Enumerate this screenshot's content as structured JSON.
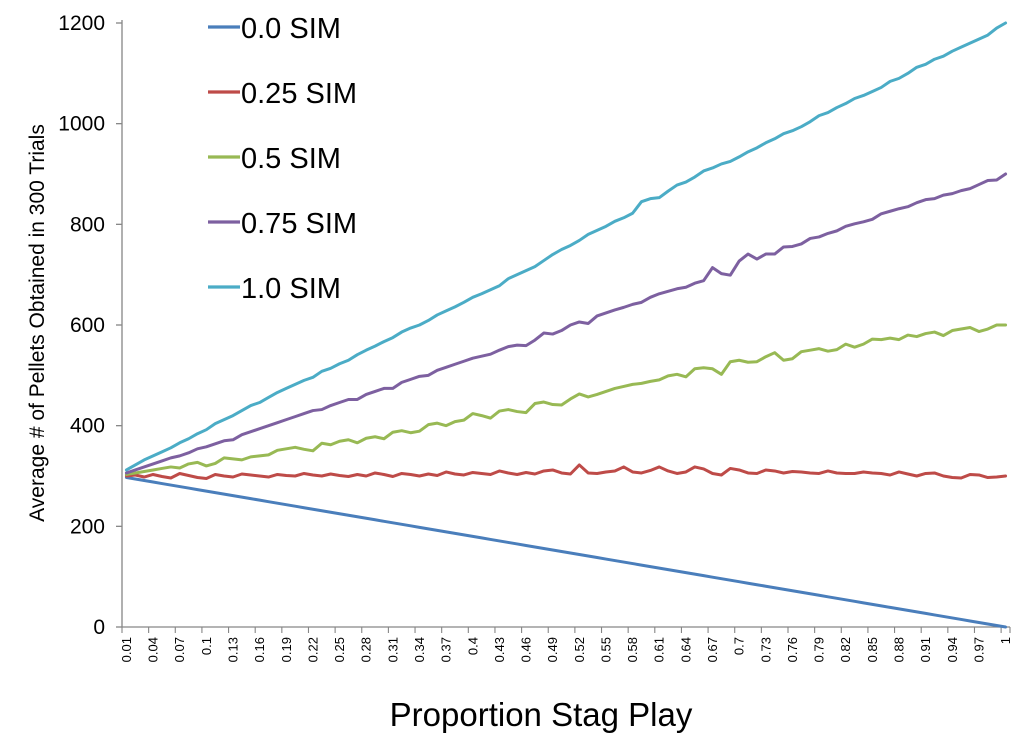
{
  "chart_data": {
    "type": "line",
    "xlabel": "Proportion Stag Play",
    "ylabel": "Average # of Pellets Obtained in 300 Trials",
    "ylim": [
      0,
      1200
    ],
    "yticks": [
      0,
      200,
      400,
      600,
      800,
      1000,
      1200
    ],
    "x": [
      0.01,
      0.02,
      0.03,
      0.04,
      0.05,
      0.06,
      0.07,
      0.08,
      0.09,
      0.1,
      0.11,
      0.12,
      0.13,
      0.14,
      0.15,
      0.16,
      0.17,
      0.18,
      0.19,
      0.2,
      0.21,
      0.22,
      0.23,
      0.24,
      0.25,
      0.26,
      0.27,
      0.28,
      0.29,
      0.3,
      0.31,
      0.32,
      0.33,
      0.34,
      0.35,
      0.36,
      0.37,
      0.38,
      0.39,
      0.4,
      0.41,
      0.42,
      0.43,
      0.44,
      0.45,
      0.46,
      0.47,
      0.48,
      0.49,
      0.5,
      0.51,
      0.52,
      0.53,
      0.54,
      0.55,
      0.56,
      0.57,
      0.58,
      0.59,
      0.6,
      0.61,
      0.62,
      0.63,
      0.64,
      0.65,
      0.66,
      0.67,
      0.68,
      0.69,
      0.7,
      0.71,
      0.72,
      0.73,
      0.74,
      0.75,
      0.76,
      0.77,
      0.78,
      0.79,
      0.8,
      0.81,
      0.82,
      0.83,
      0.84,
      0.85,
      0.86,
      0.87,
      0.88,
      0.89,
      0.9,
      0.91,
      0.92,
      0.93,
      0.94,
      0.95,
      0.96,
      0.97,
      0.98,
      0.99,
      1
    ],
    "xtick_labels": [
      "0.01",
      "0.04",
      "0.07",
      "0.1",
      "0.13",
      "0.16",
      "0.19",
      "0.22",
      "0.25",
      "0.28",
      "0.31",
      "0.34",
      "0.37",
      "0.4",
      "0.43",
      "0.46",
      "0.49",
      "0.52",
      "0.55",
      "0.58",
      "0.61",
      "0.64",
      "0.67",
      "0.7",
      "0.73",
      "0.76",
      "0.79",
      "0.82",
      "0.85",
      "0.88",
      "0.91",
      "0.94",
      "0.97",
      "1"
    ],
    "grid": false,
    "legend_position": "top-left",
    "series": [
      {
        "name": "0.0 SIM",
        "color": "#4a7ebb",
        "values": [
          297,
          294,
          291,
          288,
          285,
          282,
          279,
          276,
          273,
          270,
          267,
          264,
          261,
          258,
          255,
          252,
          249,
          246,
          243,
          240,
          237,
          234,
          231,
          228,
          225,
          222,
          219,
          216,
          213,
          210,
          207,
          204,
          201,
          198,
          195,
          192,
          189,
          186,
          183,
          180,
          177,
          174,
          171,
          168,
          165,
          162,
          159,
          156,
          153,
          150,
          147,
          144,
          141,
          138,
          135,
          132,
          129,
          126,
          123,
          120,
          117,
          114,
          111,
          108,
          105,
          102,
          99,
          96,
          93,
          90,
          87,
          84,
          81,
          78,
          75,
          72,
          69,
          66,
          63,
          60,
          57,
          54,
          51,
          48,
          45,
          42,
          39,
          36,
          33,
          30,
          27,
          24,
          21,
          18,
          15,
          12,
          9,
          6,
          3,
          0
        ]
      },
      {
        "name": "0.25 SIM",
        "color": "#be4b48",
        "values": [
          300,
          302,
          298,
          303,
          299,
          296,
          305,
          301,
          297,
          295,
          303,
          300,
          298,
          304,
          302,
          300,
          298,
          303,
          301,
          300,
          305,
          302,
          300,
          304,
          301,
          299,
          303,
          300,
          306,
          303,
          299,
          305,
          303,
          300,
          304,
          301,
          308,
          304,
          302,
          307,
          305,
          303,
          310,
          306,
          303,
          307,
          304,
          310,
          312,
          306,
          304,
          322,
          306,
          305,
          308,
          310,
          318,
          308,
          306,
          311,
          318,
          310,
          305,
          308,
          318,
          314,
          305,
          302,
          315,
          312,
          306,
          305,
          312,
          310,
          306,
          309,
          308,
          306,
          305,
          310,
          306,
          305,
          305,
          308,
          306,
          305,
          302,
          308,
          304,
          300,
          305,
          306,
          300,
          297,
          296,
          303,
          302,
          297,
          298,
          300
        ]
      },
      {
        "name": "0.5 SIM",
        "color": "#98b954",
        "values": [
          303,
          306,
          309,
          312,
          315,
          318,
          316,
          324,
          327,
          320,
          325,
          336,
          334,
          332,
          338,
          340,
          342,
          351,
          354,
          357,
          353,
          350,
          365,
          362,
          369,
          372,
          366,
          375,
          378,
          374,
          387,
          390,
          386,
          389,
          402,
          405,
          400,
          408,
          411,
          424,
          420,
          415,
          429,
          432,
          428,
          426,
          444,
          447,
          442,
          441,
          453,
          463,
          457,
          462,
          468,
          474,
          478,
          482,
          484,
          488,
          491,
          499,
          502,
          497,
          513,
          515,
          513,
          502,
          527,
          530,
          526,
          527,
          537,
          545,
          530,
          533,
          547,
          550,
          553,
          548,
          551,
          562,
          556,
          562,
          572,
          571,
          574,
          571,
          580,
          577,
          583,
          586,
          579,
          589,
          592,
          595,
          587,
          592,
          600,
          600
        ]
      },
      {
        "name": "0.75 SIM",
        "color": "#7d60a0",
        "values": [
          306,
          312,
          318,
          324,
          330,
          336,
          340,
          346,
          354,
          358,
          364,
          370,
          372,
          382,
          388,
          394,
          400,
          406,
          412,
          418,
          424,
          430,
          432,
          440,
          446,
          452,
          452,
          462,
          468,
          474,
          474,
          486,
          492,
          498,
          500,
          510,
          516,
          522,
          528,
          534,
          538,
          542,
          550,
          557,
          560,
          559,
          570,
          584,
          582,
          589,
          600,
          606,
          603,
          618,
          624,
          630,
          635,
          641,
          645,
          655,
          662,
          667,
          672,
          675,
          683,
          688,
          714,
          702,
          699,
          727,
          741,
          731,
          741,
          741,
          755,
          756,
          761,
          772,
          775,
          782,
          787,
          796,
          801,
          805,
          810,
          821,
          826,
          831,
          835,
          843,
          849,
          851,
          858,
          861,
          867,
          871,
          879,
          887,
          888,
          900
        ]
      },
      {
        "name": "1.0 SIM",
        "color": "#4bacc6",
        "values": [
          312,
          322,
          332,
          340,
          348,
          356,
          366,
          374,
          384,
          392,
          404,
          412,
          420,
          430,
          440,
          446,
          456,
          466,
          474,
          482,
          490,
          496,
          508,
          514,
          523,
          530,
          541,
          550,
          558,
          567,
          575,
          586,
          594,
          600,
          609,
          620,
          628,
          636,
          645,
          655,
          662,
          670,
          678,
          692,
          700,
          708,
          716,
          728,
          740,
          750,
          758,
          768,
          780,
          788,
          796,
          806,
          813,
          822,
          845,
          851,
          853,
          866,
          878,
          884,
          894,
          906,
          912,
          920,
          925,
          934,
          944,
          952,
          962,
          970,
          980,
          986,
          994,
          1004,
          1016,
          1022,
          1032,
          1040,
          1050,
          1056,
          1064,
          1072,
          1084,
          1090,
          1100,
          1112,
          1118,
          1128,
          1134,
          1144,
          1152,
          1160,
          1168,
          1176,
          1190,
          1200
        ]
      }
    ]
  }
}
